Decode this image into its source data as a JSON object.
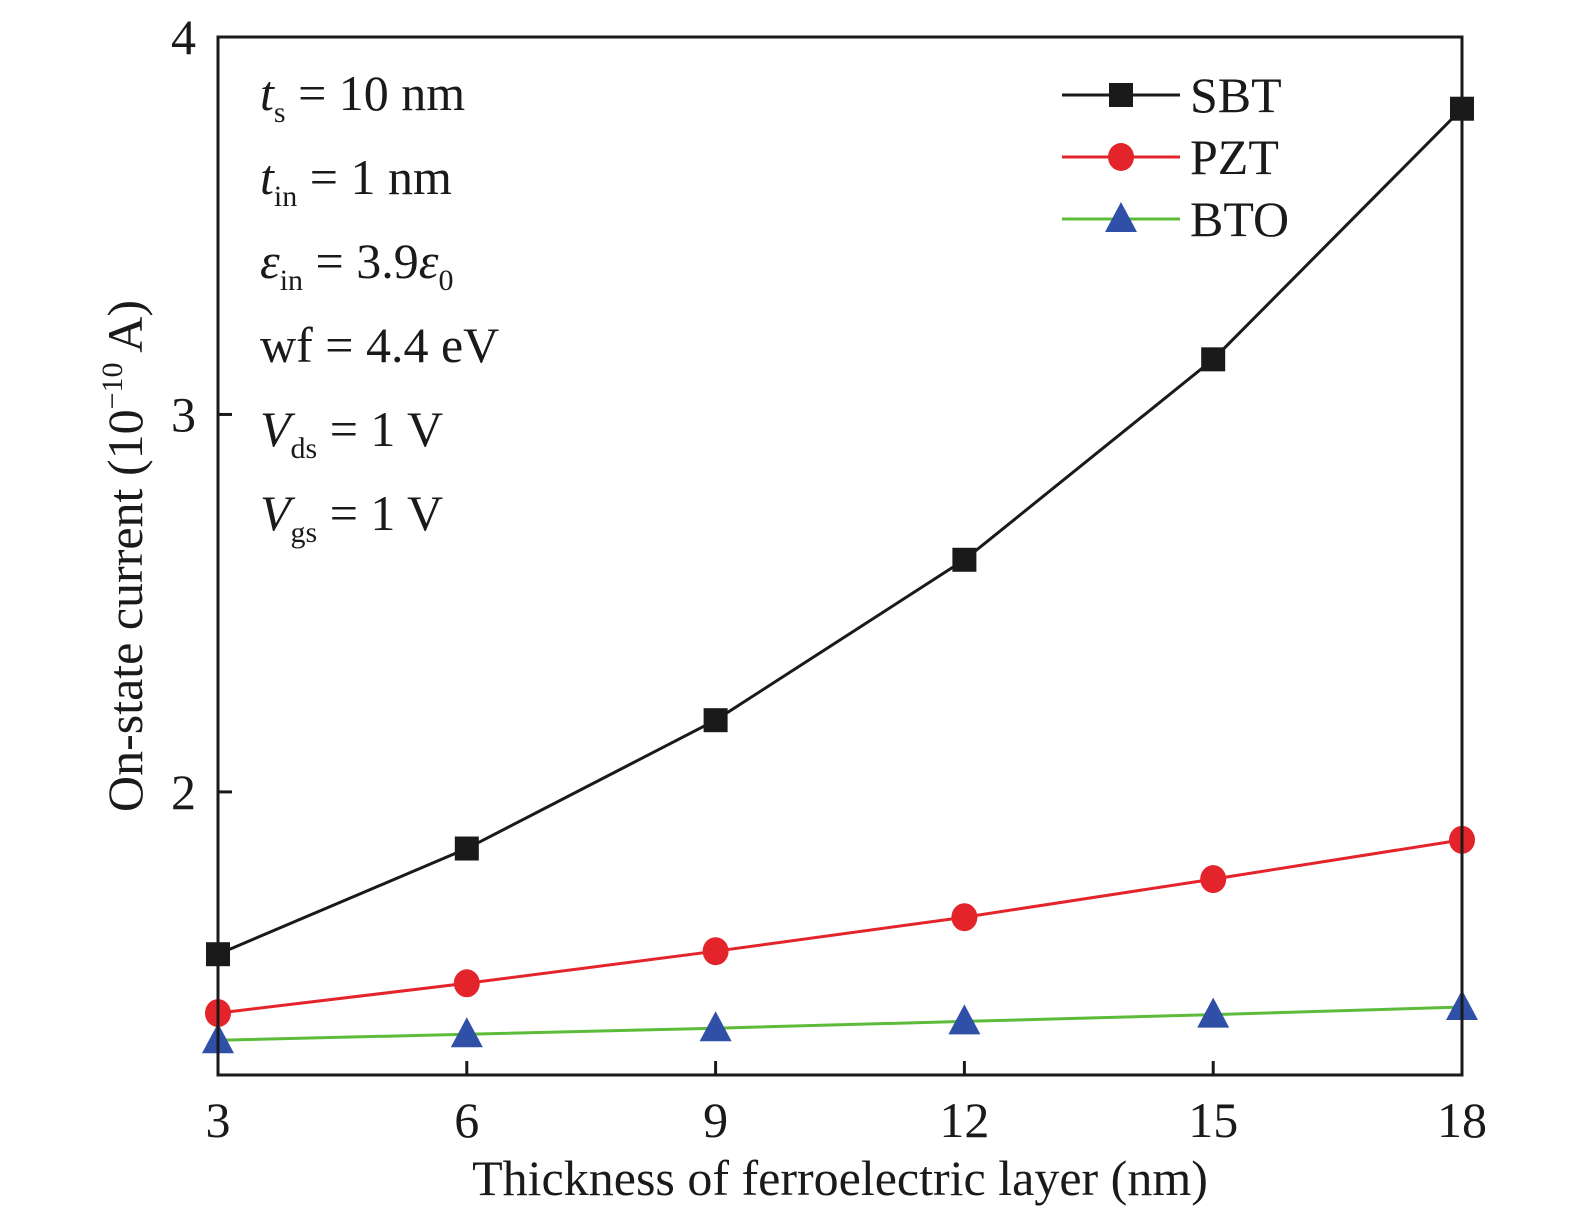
{
  "chart_data": {
    "type": "line",
    "title": "",
    "xlabel": "Thickness of ferroelectric layer (nm)",
    "ylabel_main": "On-state current (10",
    "ylabel_exp": "−10",
    "ylabel_tail": " A)",
    "x": [
      3,
      6,
      9,
      12,
      15,
      18
    ],
    "xlim": [
      3,
      18
    ],
    "ylim": [
      1.25,
      4
    ],
    "xticks": [
      "3",
      "6",
      "9",
      "12",
      "15",
      "18"
    ],
    "yticks": [
      {
        "v": 2,
        "label": "2"
      },
      {
        "v": 3,
        "label": "3"
      },
      {
        "v": 4,
        "label": "4"
      }
    ],
    "grid": false,
    "legend_position": "top-right",
    "series": [
      {
        "name": "SBT",
        "color": "#1a1a1a",
        "marker": "square",
        "marker_color": "#1a1a1a",
        "values": [
          1.57,
          1.85,
          2.19,
          2.615,
          3.146,
          3.81
        ]
      },
      {
        "name": "PZT",
        "color": "#e3242b",
        "marker": "circle",
        "marker_color": "#e3242b",
        "values": [
          1.414,
          1.493,
          1.578,
          1.668,
          1.769,
          1.873
        ]
      },
      {
        "name": "BTO",
        "color": "#5dbb3a",
        "marker": "triangle",
        "marker_color": "#3050a8",
        "values": [
          1.342,
          1.358,
          1.374,
          1.392,
          1.41,
          1.43
        ]
      }
    ],
    "annotations": [
      {
        "sym": "t",
        "sub": "s",
        "rest": " = 10 nm"
      },
      {
        "sym": "t",
        "sub": "in",
        "rest": " = 1 nm"
      },
      {
        "sym": "ε",
        "sub": "in",
        "rest": " = 3.9",
        "sym2": "ε",
        "sub2": "0"
      },
      {
        "sym": "",
        "sub": "",
        "rest": "wf = 4.4 eV"
      },
      {
        "sym": "V",
        "sub": "ds",
        "rest": " = 1 V"
      },
      {
        "sym": "V",
        "sub": "gs",
        "rest": " = 1 V"
      }
    ]
  }
}
